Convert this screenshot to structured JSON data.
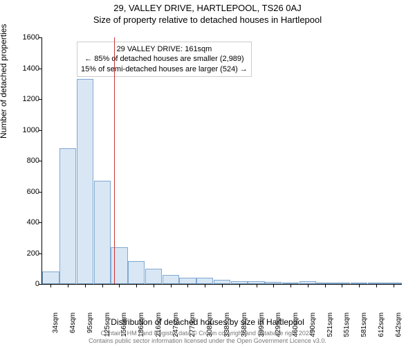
{
  "header": {
    "address": "29, VALLEY DRIVE, HARTLEPOOL, TS26 0AJ",
    "subtitle": "Size of property relative to detached houses in Hartlepool"
  },
  "chart": {
    "type": "histogram",
    "ylabel": "Number of detached properties",
    "xlabel": "Distribution of detached houses by size in Hartlepool",
    "ylim": [
      0,
      1600
    ],
    "ytick_step": 200,
    "yticks": [
      0,
      200,
      400,
      600,
      800,
      1000,
      1200,
      1400,
      1600
    ],
    "categories": [
      "34sqm",
      "64sqm",
      "95sqm",
      "125sqm",
      "156sqm",
      "186sqm",
      "216sqm",
      "247sqm",
      "277sqm",
      "308sqm",
      "338sqm",
      "368sqm",
      "399sqm",
      "429sqm",
      "460sqm",
      "490sqm",
      "521sqm",
      "551sqm",
      "581sqm",
      "612sqm",
      "642sqm"
    ],
    "values": [
      80,
      880,
      1330,
      670,
      240,
      150,
      100,
      60,
      40,
      40,
      25,
      18,
      18,
      12,
      8,
      18,
      5,
      5,
      2,
      2,
      2
    ],
    "bar_fill": "#d9e7f5",
    "bar_stroke": "#7fa8cf",
    "bar_stroke_width": 1,
    "background_color": "#ffffff",
    "axis_color": "#000000",
    "tick_fontsize": 11,
    "label_fontsize": 12,
    "reference_line": {
      "x_category_index": 4.2,
      "color": "#cc3333",
      "width": 1
    },
    "annotation": {
      "line1": "29 VALLEY DRIVE: 161sqm",
      "line2": "← 85% of detached houses are smaller (2,989)",
      "line3": "15% of semi-detached houses are larger (524) →",
      "border_color": "#cccccc",
      "fontsize": 11
    }
  },
  "footer": {
    "line1": "Contains HM Land Registry data © Crown copyright and database right 2024.",
    "line2": "Contains public sector information licensed under the Open Government Licence v3.0."
  }
}
